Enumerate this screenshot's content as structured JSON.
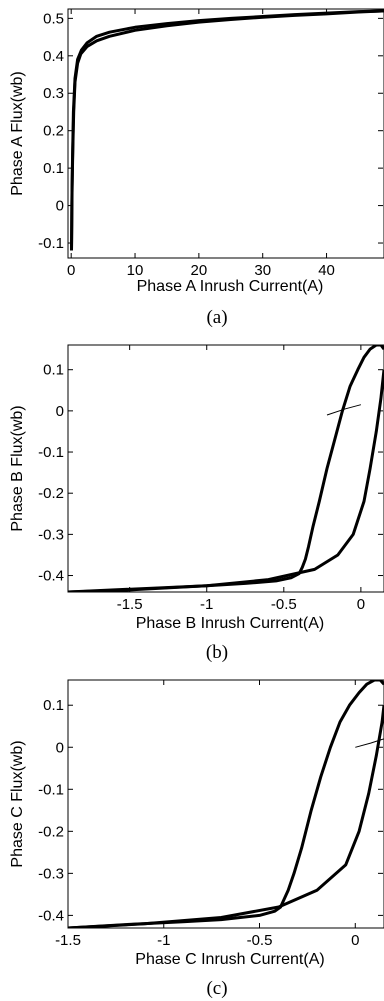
{
  "chart_data": [
    {
      "type": "line",
      "caption": "(a)",
      "xlabel": "Phase A Inrush Current(A)",
      "ylabel": "Phase A Flux(wb)",
      "xlim": [
        -0.5,
        49
      ],
      "ylim": [
        -0.14,
        0.525
      ],
      "xticks": [
        0,
        10,
        20,
        30,
        40
      ],
      "yticks": [
        -0.1,
        0,
        0.1,
        0.2,
        0.3,
        0.4,
        0.5
      ],
      "grid": false,
      "series": [
        {
          "x": [
            0.05,
            0.1,
            0.15,
            0.25,
            0.4,
            0.6,
            1.0,
            1.5,
            2.5,
            4,
            6,
            10,
            15,
            20,
            25,
            30,
            35,
            40,
            45,
            49
          ],
          "y": [
            -0.12,
            -0.05,
            0.05,
            0.15,
            0.25,
            0.33,
            0.38,
            0.405,
            0.425,
            0.44,
            0.452,
            0.468,
            0.48,
            0.49,
            0.497,
            0.503,
            0.508,
            0.512,
            0.517,
            0.52
          ]
        },
        {
          "x": [
            0.05,
            0.1,
            0.2,
            0.35,
            0.6,
            1.0,
            1.6,
            2.5,
            4,
            6,
            10,
            15,
            20,
            25,
            30,
            35,
            40,
            45,
            49
          ],
          "y": [
            -0.12,
            0.0,
            0.12,
            0.25,
            0.34,
            0.39,
            0.415,
            0.435,
            0.452,
            0.463,
            0.476,
            0.486,
            0.494,
            0.5,
            0.505,
            0.51,
            0.514,
            0.518,
            0.52
          ]
        }
      ]
    },
    {
      "type": "line",
      "caption": "(b)",
      "xlabel": "Phase B Inrush Current(A)",
      "ylabel": "Phase B Flux(wb)",
      "xlim": [
        -1.9,
        0.15
      ],
      "ylim": [
        -0.44,
        0.16
      ],
      "xticks": [
        -1.5,
        -1,
        -0.5,
        0
      ],
      "yticks": [
        -0.4,
        -0.3,
        -0.2,
        -0.1,
        0,
        0.1
      ],
      "grid": false,
      "series": [
        {
          "x": [
            0.15,
            0.13,
            0.1,
            0.06,
            0.02,
            -0.02,
            -0.07,
            -0.12,
            -0.17,
            -0.22,
            -0.27,
            -0.31,
            -0.34,
            -0.36,
            -0.38,
            -0.4,
            -0.45,
            -0.55,
            -0.75,
            -1.0,
            -1.3,
            -1.6,
            -1.9
          ],
          "y": [
            0.15,
            0.16,
            0.16,
            0.15,
            0.13,
            0.1,
            0.06,
            0.0,
            -0.07,
            -0.14,
            -0.22,
            -0.28,
            -0.33,
            -0.36,
            -0.38,
            -0.395,
            -0.405,
            -0.413,
            -0.419,
            -0.425,
            -0.43,
            -0.435,
            -0.44
          ]
        },
        {
          "x": [
            -1.9,
            -1.5,
            -1.0,
            -0.6,
            -0.3,
            -0.15,
            -0.05,
            0.02,
            0.06,
            0.1,
            0.13,
            0.15
          ],
          "y": [
            -0.44,
            -0.435,
            -0.425,
            -0.41,
            -0.385,
            -0.35,
            -0.3,
            -0.22,
            -0.14,
            -0.05,
            0.03,
            0.1
          ]
        },
        {
          "x": [
            -0.22,
            -0.1,
            0.0
          ],
          "y": [
            -0.01,
            0.005,
            0.015
          ]
        }
      ]
    },
    {
      "type": "line",
      "caption": "(c)",
      "xlabel": "Phase C Inrush Current(A)",
      "ylabel": "Phase C Flux(wb)",
      "xlim": [
        -1.5,
        0.15
      ],
      "ylim": [
        -0.43,
        0.16
      ],
      "xticks": [
        -1.5,
        -1,
        -0.5,
        0
      ],
      "yticks": [
        -0.4,
        -0.3,
        -0.2,
        -0.1,
        0,
        0.1
      ],
      "grid": false,
      "series": [
        {
          "x": [
            0.15,
            0.13,
            0.1,
            0.06,
            0.02,
            -0.03,
            -0.08,
            -0.13,
            -0.18,
            -0.23,
            -0.28,
            -0.32,
            -0.35,
            -0.37,
            -0.39,
            -0.42,
            -0.5,
            -0.7,
            -0.9,
            -1.2,
            -1.5
          ],
          "y": [
            0.15,
            0.16,
            0.16,
            0.15,
            0.13,
            0.1,
            0.06,
            0.0,
            -0.07,
            -0.15,
            -0.24,
            -0.3,
            -0.34,
            -0.36,
            -0.38,
            -0.39,
            -0.4,
            -0.41,
            -0.415,
            -0.422,
            -0.43
          ]
        },
        {
          "x": [
            -1.5,
            -1.1,
            -0.7,
            -0.4,
            -0.2,
            -0.05,
            0.02,
            0.07,
            0.11,
            0.14,
            0.15
          ],
          "y": [
            -0.43,
            -0.42,
            -0.405,
            -0.38,
            -0.34,
            -0.28,
            -0.2,
            -0.11,
            -0.02,
            0.06,
            0.1
          ]
        },
        {
          "x": [
            0.0,
            0.08,
            0.15
          ],
          "y": [
            0.0,
            0.01,
            0.02
          ]
        }
      ]
    }
  ]
}
